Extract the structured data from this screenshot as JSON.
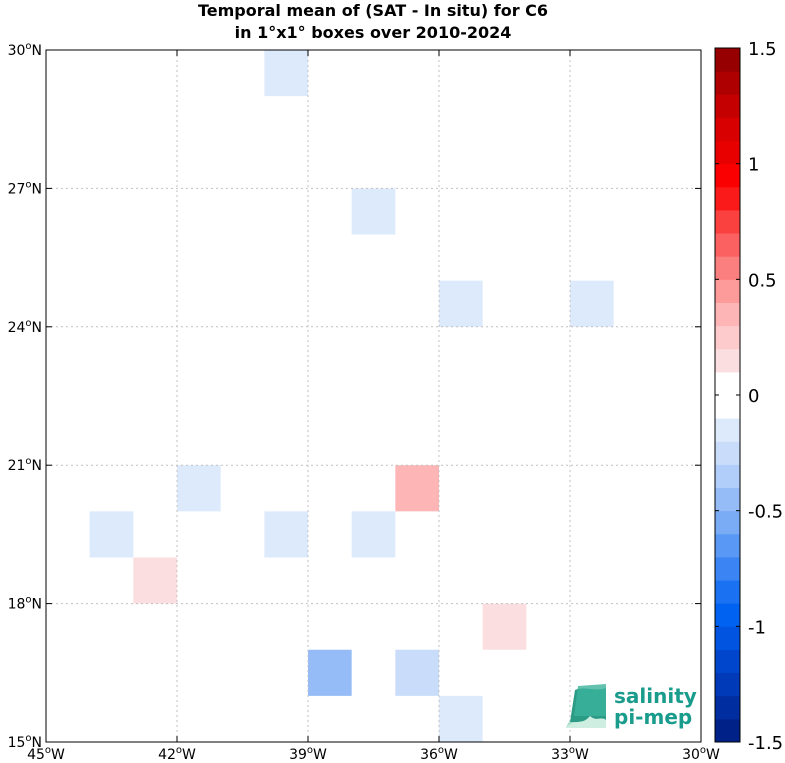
{
  "chart_data": {
    "type": "heatmap",
    "title_line1": "Temporal mean of (SAT - In situ) for C6",
    "title_line2": "in 1°x1° boxes over 2010-2024",
    "xlim": [
      -45,
      -30
    ],
    "ylim": [
      15,
      30
    ],
    "x_ticks": [
      {
        "value": -45,
        "deg": "45",
        "hemi": "W"
      },
      {
        "value": -42,
        "deg": "42",
        "hemi": "W"
      },
      {
        "value": -39,
        "deg": "39",
        "hemi": "W"
      },
      {
        "value": -36,
        "deg": "36",
        "hemi": "W"
      },
      {
        "value": -33,
        "deg": "33",
        "hemi": "W"
      },
      {
        "value": -30,
        "deg": "30",
        "hemi": "W"
      }
    ],
    "y_ticks": [
      {
        "value": 15,
        "deg": "15",
        "hemi": "N"
      },
      {
        "value": 18,
        "deg": "18",
        "hemi": "N"
      },
      {
        "value": 21,
        "deg": "21",
        "hemi": "N"
      },
      {
        "value": 24,
        "deg": "24",
        "hemi": "N"
      },
      {
        "value": 27,
        "deg": "27",
        "hemi": "N"
      },
      {
        "value": 30,
        "deg": "30",
        "hemi": "N"
      }
    ],
    "grid": true,
    "colorbar": {
      "range": [
        -1.5,
        1.5
      ],
      "ticks": [
        {
          "value": 1.5,
          "label": "1.5"
        },
        {
          "value": 1,
          "label": "1"
        },
        {
          "value": 0.5,
          "label": "0.5"
        },
        {
          "value": 0,
          "label": "0"
        },
        {
          "value": -0.5,
          "label": "-0.5"
        },
        {
          "value": -1,
          "label": "-1"
        },
        {
          "value": -1.5,
          "label": "-1.5"
        }
      ]
    },
    "cells": [
      {
        "lon": -40,
        "lat": 29,
        "value": -0.15
      },
      {
        "lon": -38,
        "lat": 26,
        "value": -0.15
      },
      {
        "lon": -36,
        "lat": 24,
        "value": -0.15
      },
      {
        "lon": -33,
        "lat": 24,
        "value": -0.15
      },
      {
        "lon": -42,
        "lat": 20,
        "value": -0.15
      },
      {
        "lon": -37,
        "lat": 20,
        "value": 0.3
      },
      {
        "lon": -44,
        "lat": 19,
        "value": -0.15
      },
      {
        "lon": -40,
        "lat": 19,
        "value": -0.15
      },
      {
        "lon": -38,
        "lat": 19,
        "value": -0.15
      },
      {
        "lon": -43,
        "lat": 18,
        "value": 0.15
      },
      {
        "lon": -35,
        "lat": 17,
        "value": 0.15
      },
      {
        "lon": -39,
        "lat": 16,
        "value": -0.4
      },
      {
        "lon": -37,
        "lat": 16,
        "value": -0.25
      },
      {
        "lon": -36,
        "lat": 15,
        "value": -0.15
      }
    ]
  },
  "logo": {
    "line1": "salinity",
    "line2": "pi-mep"
  }
}
